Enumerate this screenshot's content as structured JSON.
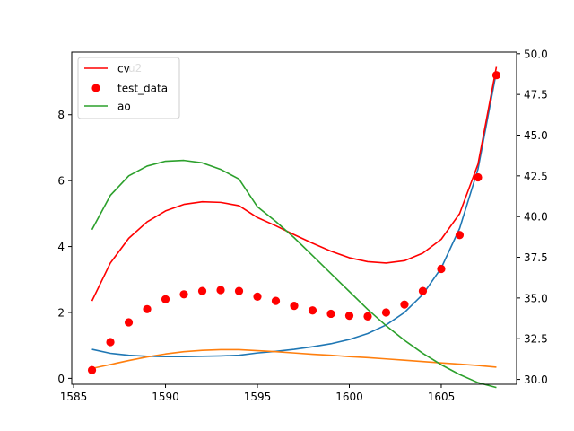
{
  "chart_data": {
    "type": "line",
    "title": "",
    "xlabel": "",
    "ylabel": "",
    "xlim": [
      1584.9,
      1609.1
    ],
    "ylim_left": [
      -0.18,
      9.9
    ],
    "ylim_right": [
      29.7,
      50.1
    ],
    "x_ticks": [
      1585,
      1590,
      1595,
      1600,
      1605
    ],
    "y_left_ticks": [
      0,
      2,
      4,
      6,
      8
    ],
    "y_right_ticks": [
      30.0,
      32.5,
      35.0,
      37.5,
      40.0,
      42.5,
      45.0,
      47.5,
      50.0
    ],
    "y_right_tick_labels": [
      "30.0",
      "32.5",
      "35.0",
      "37.5",
      "40.0",
      "42.5",
      "45.0",
      "47.5",
      "50.0"
    ],
    "grid": false,
    "legend": {
      "placement": "top-left",
      "entries": [
        {
          "label": "cv",
          "color": "#ff0000",
          "marker": "line"
        },
        {
          "label": "test_data",
          "color": "#ff0000",
          "marker": "point"
        },
        {
          "label": "ao",
          "color": "#2ca02c",
          "marker": "line"
        }
      ],
      "hidden_label": "u2"
    },
    "x": [
      1586,
      1587,
      1588,
      1589,
      1590,
      1591,
      1592,
      1593,
      1594,
      1595,
      1596,
      1597,
      1598,
      1599,
      1600,
      1601,
      1602,
      1603,
      1604,
      1605,
      1606,
      1607,
      1608
    ],
    "series": [
      {
        "name": "",
        "axis": "left",
        "color": "#1f77b4",
        "style": "line",
        "values": [
          0.88,
          0.76,
          0.7,
          0.67,
          0.66,
          0.66,
          0.67,
          0.68,
          0.7,
          0.77,
          0.82,
          0.88,
          0.96,
          1.05,
          1.18,
          1.36,
          1.62,
          2.0,
          2.55,
          3.35,
          4.55,
          6.35,
          9.3
        ]
      },
      {
        "name": "",
        "axis": "left",
        "color": "#ff7f0e",
        "style": "line",
        "values": [
          0.3,
          0.42,
          0.54,
          0.65,
          0.74,
          0.81,
          0.85,
          0.87,
          0.87,
          0.84,
          0.81,
          0.77,
          0.73,
          0.7,
          0.66,
          0.63,
          0.59,
          0.55,
          0.51,
          0.47,
          0.43,
          0.39,
          0.34
        ]
      },
      {
        "name": "cv",
        "axis": "left",
        "color": "#ff0000",
        "style": "line",
        "values": [
          2.35,
          3.5,
          4.25,
          4.75,
          5.08,
          5.28,
          5.36,
          5.34,
          5.24,
          4.88,
          4.63,
          4.36,
          4.1,
          3.86,
          3.66,
          3.54,
          3.5,
          3.57,
          3.8,
          4.22,
          5.0,
          6.5,
          9.45
        ]
      },
      {
        "name": "test_data",
        "axis": "left",
        "color": "#ff0000",
        "style": "points",
        "values": [
          0.25,
          1.1,
          1.7,
          2.1,
          2.4,
          2.55,
          2.65,
          2.68,
          2.65,
          2.48,
          2.35,
          2.2,
          2.06,
          1.96,
          1.9,
          1.88,
          2.0,
          2.24,
          2.65,
          3.32,
          4.35,
          6.1,
          9.2
        ]
      },
      {
        "name": "ao",
        "axis": "right",
        "color": "#2ca02c",
        "style": "line",
        "values": [
          39.2,
          41.3,
          42.5,
          43.1,
          43.4,
          43.45,
          43.3,
          42.9,
          42.3,
          40.6,
          39.7,
          38.7,
          37.6,
          36.5,
          35.4,
          34.3,
          33.3,
          32.4,
          31.6,
          30.9,
          30.3,
          29.8,
          29.5
        ]
      }
    ]
  }
}
